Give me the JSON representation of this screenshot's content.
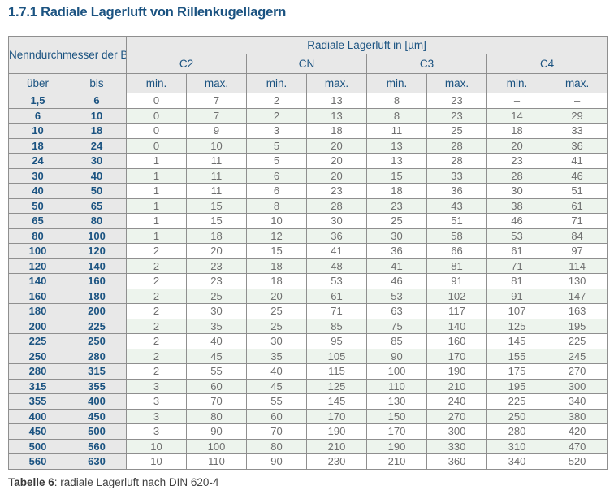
{
  "page": {
    "title": "1.7.1 Radiale Lagerluft von Rillenkugellagern"
  },
  "table": {
    "header": {
      "bore_group_label": "Nenndurchmesser der Bohrung d [mm]",
      "clearance_group_label": "Radiale Lagerluft in [µm]",
      "classes": [
        "C2",
        "CN",
        "C3",
        "C4"
      ],
      "sub_left": [
        "über",
        "bis"
      ],
      "sub_minmax": [
        "min.",
        "max."
      ]
    },
    "rows": [
      [
        "1,5",
        "6",
        "0",
        "7",
        "2",
        "13",
        "8",
        "23",
        "–",
        "–"
      ],
      [
        "6",
        "10",
        "0",
        "7",
        "2",
        "13",
        "8",
        "23",
        "14",
        "29"
      ],
      [
        "10",
        "18",
        "0",
        "9",
        "3",
        "18",
        "11",
        "25",
        "18",
        "33"
      ],
      [
        "18",
        "24",
        "0",
        "10",
        "5",
        "20",
        "13",
        "28",
        "20",
        "36"
      ],
      [
        "24",
        "30",
        "1",
        "11",
        "5",
        "20",
        "13",
        "28",
        "23",
        "41"
      ],
      [
        "30",
        "40",
        "1",
        "11",
        "6",
        "20",
        "15",
        "33",
        "28",
        "46"
      ],
      [
        "40",
        "50",
        "1",
        "11",
        "6",
        "23",
        "18",
        "36",
        "30",
        "51"
      ],
      [
        "50",
        "65",
        "1",
        "15",
        "8",
        "28",
        "23",
        "43",
        "38",
        "61"
      ],
      [
        "65",
        "80",
        "1",
        "15",
        "10",
        "30",
        "25",
        "51",
        "46",
        "71"
      ],
      [
        "80",
        "100",
        "1",
        "18",
        "12",
        "36",
        "30",
        "58",
        "53",
        "84"
      ],
      [
        "100",
        "120",
        "2",
        "20",
        "15",
        "41",
        "36",
        "66",
        "61",
        "97"
      ],
      [
        "120",
        "140",
        "2",
        "23",
        "18",
        "48",
        "41",
        "81",
        "71",
        "114"
      ],
      [
        "140",
        "160",
        "2",
        "23",
        "18",
        "53",
        "46",
        "91",
        "81",
        "130"
      ],
      [
        "160",
        "180",
        "2",
        "25",
        "20",
        "61",
        "53",
        "102",
        "91",
        "147"
      ],
      [
        "180",
        "200",
        "2",
        "30",
        "25",
        "71",
        "63",
        "117",
        "107",
        "163"
      ],
      [
        "200",
        "225",
        "2",
        "35",
        "25",
        "85",
        "75",
        "140",
        "125",
        "195"
      ],
      [
        "225",
        "250",
        "2",
        "40",
        "30",
        "95",
        "85",
        "160",
        "145",
        "225"
      ],
      [
        "250",
        "280",
        "2",
        "45",
        "35",
        "105",
        "90",
        "170",
        "155",
        "245"
      ],
      [
        "280",
        "315",
        "2",
        "55",
        "40",
        "115",
        "100",
        "190",
        "175",
        "270"
      ],
      [
        "315",
        "355",
        "3",
        "60",
        "45",
        "125",
        "110",
        "210",
        "195",
        "300"
      ],
      [
        "355",
        "400",
        "3",
        "70",
        "55",
        "145",
        "130",
        "240",
        "225",
        "340"
      ],
      [
        "400",
        "450",
        "3",
        "80",
        "60",
        "170",
        "150",
        "270",
        "250",
        "380"
      ],
      [
        "450",
        "500",
        "3",
        "90",
        "70",
        "190",
        "170",
        "300",
        "280",
        "420"
      ],
      [
        "500",
        "560",
        "10",
        "100",
        "80",
        "210",
        "190",
        "330",
        "310",
        "470"
      ],
      [
        "560",
        "630",
        "10",
        "110",
        "90",
        "230",
        "210",
        "360",
        "340",
        "520"
      ]
    ]
  },
  "caption": {
    "label": "Tabelle 6",
    "text": ": radiale Lagerluft nach DIN 620-4"
  },
  "colors": {
    "heading_blue": "#1b5381",
    "header_bg": "#e8e8e8",
    "stripe_green": "#edf4ed",
    "border_grey": "#8f8f8f",
    "value_grey": "#6e6e6e"
  }
}
